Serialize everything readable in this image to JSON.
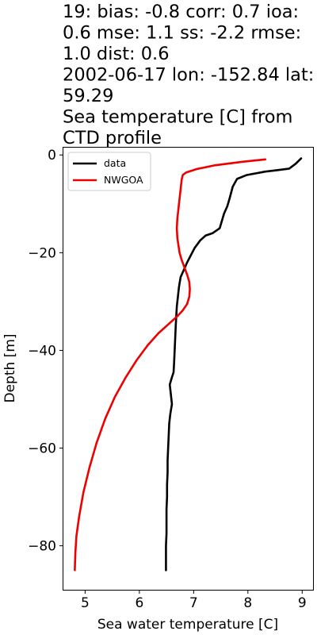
{
  "title_lines": [
    "19: bias: -0.8  corr: 0.7  ioa:",
    "0.6  mse: 1.1  ss: -2.2  rmse:",
    "1.0  dist: 0.6",
    "2002-06-17 lon: -152.84 lat:",
    "59.29",
    "Sea temperature [C] from",
    "CTD profile"
  ],
  "chart_data": {
    "type": "line",
    "xlabel": "Sea water temperature [C]",
    "ylabel": "Depth [m]",
    "xlim": [
      4.6,
      9.2
    ],
    "ylim": [
      -89,
      1.5
    ],
    "xticks": [
      5,
      6,
      7,
      8,
      9
    ],
    "yticks": [
      0,
      -20,
      -40,
      -60,
      -80
    ],
    "legend_position": "top-left",
    "series": [
      {
        "name": "data",
        "color": "#000000",
        "points": [
          [
            8.98,
            -0.7
          ],
          [
            8.88,
            -1.8
          ],
          [
            8.76,
            -2.8
          ],
          [
            8.55,
            -3.1
          ],
          [
            8.32,
            -3.4
          ],
          [
            7.98,
            -4.1
          ],
          [
            7.8,
            -4.9
          ],
          [
            7.72,
            -6.5
          ],
          [
            7.66,
            -9.0
          ],
          [
            7.62,
            -10.5
          ],
          [
            7.56,
            -12.0
          ],
          [
            7.52,
            -13.5
          ],
          [
            7.48,
            -15.0
          ],
          [
            7.35,
            -16.0
          ],
          [
            7.22,
            -16.5
          ],
          [
            7.12,
            -17.5
          ],
          [
            7.02,
            -19.0
          ],
          [
            6.95,
            -20.5
          ],
          [
            6.88,
            -22.0
          ],
          [
            6.82,
            -23.5
          ],
          [
            6.76,
            -25.0
          ],
          [
            6.73,
            -27.0
          ],
          [
            6.71,
            -29.0
          ],
          [
            6.69,
            -31.0
          ],
          [
            6.68,
            -33.0
          ],
          [
            6.67,
            -35.0
          ],
          [
            6.66,
            -37.5
          ],
          [
            6.65,
            -40.0
          ],
          [
            6.64,
            -42.5
          ],
          [
            6.63,
            -44.5
          ],
          [
            6.6,
            -45.5
          ],
          [
            6.56,
            -47.0
          ],
          [
            6.58,
            -49.0
          ],
          [
            6.6,
            -51.0
          ],
          [
            6.57,
            -53.0
          ],
          [
            6.55,
            -55.0
          ],
          [
            6.54,
            -57.5
          ],
          [
            6.53,
            -60.0
          ],
          [
            6.52,
            -62.5
          ],
          [
            6.52,
            -65.0
          ],
          [
            6.51,
            -67.5
          ],
          [
            6.51,
            -70.0
          ],
          [
            6.5,
            -72.5
          ],
          [
            6.5,
            -75.0
          ],
          [
            6.5,
            -77.5
          ],
          [
            6.49,
            -80.0
          ],
          [
            6.49,
            -82.5
          ],
          [
            6.49,
            -85.0
          ]
        ]
      },
      {
        "name": "NWGOA",
        "color": "#ee0000",
        "points": [
          [
            8.32,
            -0.9
          ],
          [
            7.9,
            -1.4
          ],
          [
            7.4,
            -2.1
          ],
          [
            7.05,
            -2.9
          ],
          [
            6.86,
            -3.6
          ],
          [
            6.8,
            -4.1
          ],
          [
            6.78,
            -5.0
          ],
          [
            6.76,
            -7.0
          ],
          [
            6.74,
            -9.0
          ],
          [
            6.72,
            -11.0
          ],
          [
            6.7,
            -13.0
          ],
          [
            6.69,
            -15.0
          ],
          [
            6.7,
            -17.0
          ],
          [
            6.72,
            -18.5
          ],
          [
            6.74,
            -20.0
          ],
          [
            6.78,
            -21.5
          ],
          [
            6.83,
            -23.0
          ],
          [
            6.88,
            -24.5
          ],
          [
            6.92,
            -26.0
          ],
          [
            6.93,
            -27.5
          ],
          [
            6.92,
            -29.0
          ],
          [
            6.88,
            -30.5
          ],
          [
            6.8,
            -31.8
          ],
          [
            6.7,
            -33.0
          ],
          [
            6.55,
            -34.5
          ],
          [
            6.35,
            -36.5
          ],
          [
            6.15,
            -39.0
          ],
          [
            5.95,
            -42.0
          ],
          [
            5.75,
            -45.5
          ],
          [
            5.55,
            -49.5
          ],
          [
            5.37,
            -54.0
          ],
          [
            5.21,
            -59.0
          ],
          [
            5.08,
            -64.0
          ],
          [
            4.97,
            -69.0
          ],
          [
            4.89,
            -74.0
          ],
          [
            4.84,
            -78.0
          ],
          [
            4.82,
            -81.5
          ],
          [
            4.81,
            -85.0
          ]
        ]
      }
    ]
  }
}
